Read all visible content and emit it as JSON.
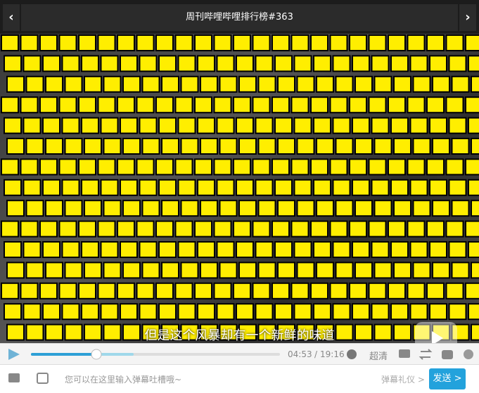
{
  "header": {
    "title": "周刊哔哩哔哩排行榜#363"
  },
  "video": {
    "subtitle": "但是这个风暴却有一个新鲜的味道"
  },
  "controls": {
    "current_time": "04:53",
    "separator": "/",
    "duration": "19:16",
    "quality": "超清"
  },
  "input": {
    "placeholder": "您可以在这里输入弹幕吐槽哦~",
    "etiquette": "弹幕礼仪 >",
    "send": "发送 >"
  }
}
